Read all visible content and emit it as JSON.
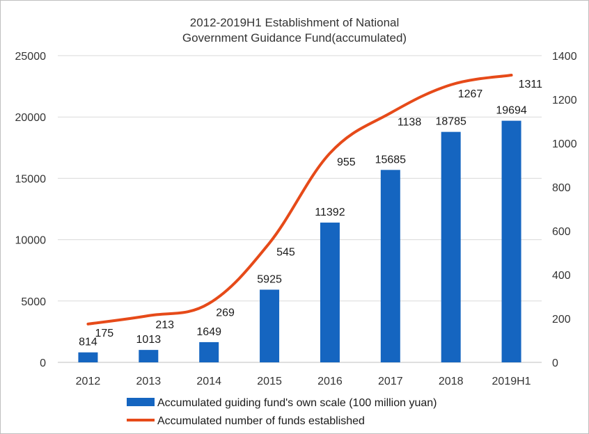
{
  "chart_data": {
    "type": "bar",
    "title": "2012-2019H1 Establishment of National\nGovernment Guidance Fund(accumulated)",
    "categories": [
      "2012",
      "2013",
      "2014",
      "2015",
      "2016",
      "2017",
      "2018",
      "2019H1"
    ],
    "series": [
      {
        "name": "Accumulated guiding fund's own scale (100 million yuan)",
        "type": "bar",
        "axis": "left",
        "values": [
          814,
          1013,
          1649,
          5925,
          11392,
          15685,
          18785,
          19694
        ],
        "color": "#1565c0"
      },
      {
        "name": "Accumulated number of funds established",
        "type": "line",
        "axis": "right",
        "values": [
          175,
          213,
          269,
          545,
          955,
          1138,
          1267,
          1311
        ],
        "color": "#e64a19"
      }
    ],
    "y_left": {
      "min": 0,
      "max": 25000,
      "ticks": [
        0,
        5000,
        10000,
        15000,
        20000,
        25000
      ]
    },
    "y_right": {
      "min": 0,
      "max": 1400,
      "ticks": [
        0,
        200,
        400,
        600,
        800,
        1000,
        1200,
        1400
      ]
    },
    "grid": true,
    "legend": "bottom"
  }
}
